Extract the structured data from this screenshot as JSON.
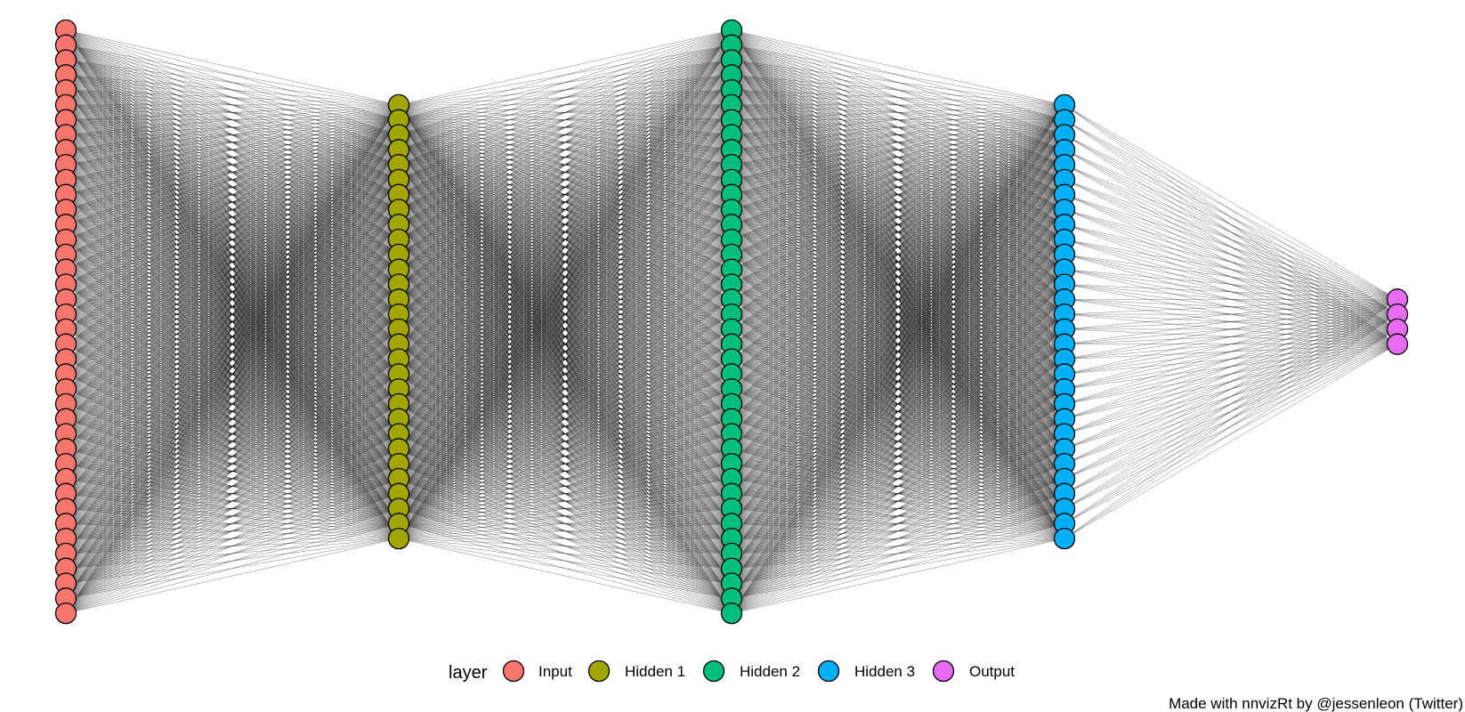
{
  "network": {
    "layers": [
      {
        "name": "Input",
        "nodes": 40,
        "color": "#F8766D"
      },
      {
        "name": "Hidden 1",
        "nodes": 30,
        "color": "#A3A500"
      },
      {
        "name": "Hidden 2",
        "nodes": 40,
        "color": "#00BF7D"
      },
      {
        "name": "Hidden 3",
        "nodes": 30,
        "color": "#00B0F6"
      },
      {
        "name": "Output",
        "nodes": 4,
        "color": "#E76BF3"
      }
    ],
    "edge_color": "#000000",
    "node_border_color": "#000000"
  },
  "legend": {
    "title": "layer",
    "items": [
      {
        "label": "Input",
        "color": "#F8766D"
      },
      {
        "label": "Hidden 1",
        "color": "#A3A500"
      },
      {
        "label": "Hidden 2",
        "color": "#00BF7D"
      },
      {
        "label": "Hidden 3",
        "color": "#00B0F6"
      },
      {
        "label": "Output",
        "color": "#E76BF3"
      }
    ]
  },
  "caption": "Made with nnvizRt by @jessenleon (Twitter)"
}
